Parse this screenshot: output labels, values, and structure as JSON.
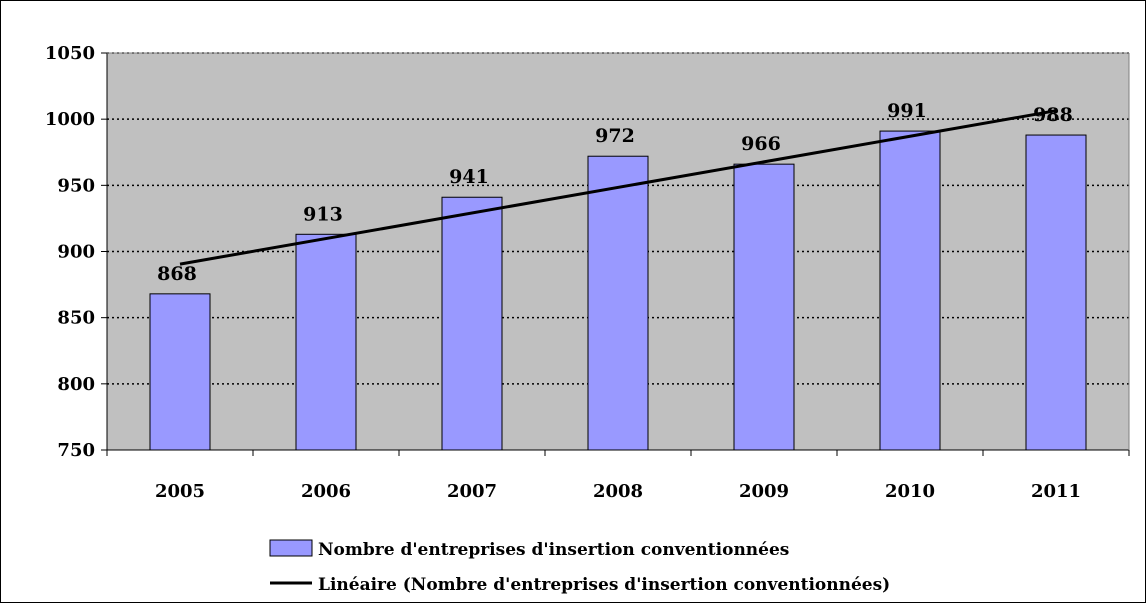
{
  "chart_data": {
    "type": "bar",
    "categories": [
      "2005",
      "2006",
      "2007",
      "2008",
      "2009",
      "2010",
      "2011"
    ],
    "series": [
      {
        "name": "Nombre d'entreprises d'insertion conventionnées",
        "values": [
          868,
          913,
          941,
          972,
          966,
          991,
          988
        ],
        "color": "#9999ff"
      }
    ],
    "trendline": {
      "name": "Linéaire (Nombre d'entreprises d'insertion conventionnées)",
      "type": "linear",
      "color": "#000000"
    },
    "data_labels": [
      "868",
      "913",
      "941",
      "972",
      "966",
      "991",
      "988"
    ],
    "ylim": [
      750,
      1050
    ],
    "yticks": [
      750,
      800,
      850,
      900,
      950,
      1000,
      1050
    ],
    "ytick_labels": [
      "750",
      "800",
      "850",
      "900",
      "950",
      "1000",
      "1050"
    ],
    "grid": "dotted-horizontal",
    "legend_position": "bottom",
    "plot_background": "#c0c0c0",
    "title": "",
    "xlabel": "",
    "ylabel": ""
  }
}
